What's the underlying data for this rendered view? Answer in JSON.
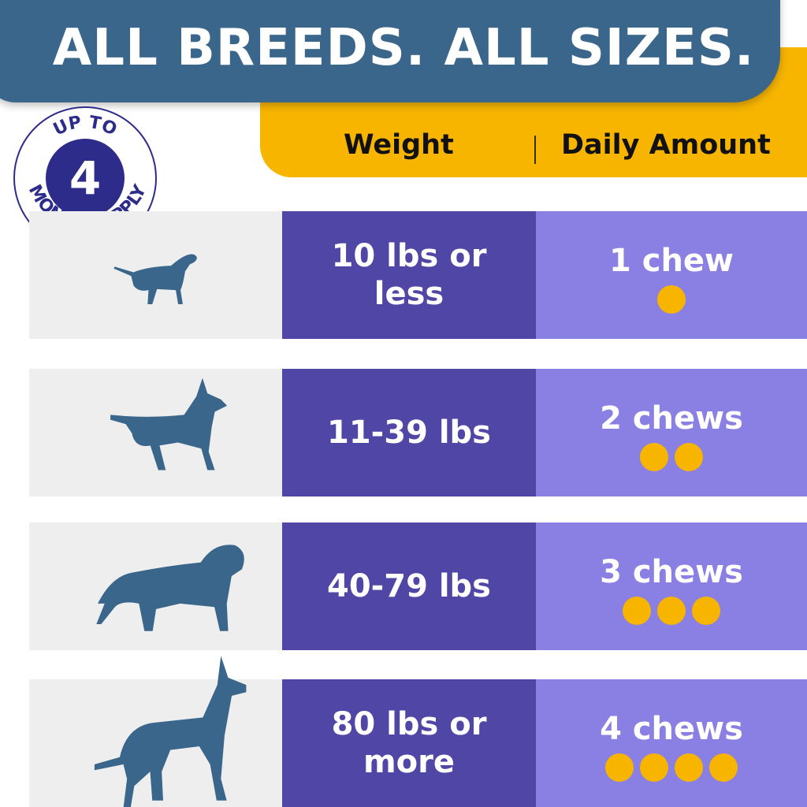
{
  "header": {
    "title": "ALL BREEDS. ALL SIZES."
  },
  "columns": {
    "weight": "Weight",
    "daily": "Daily Amount"
  },
  "badge": {
    "top": "UP TO",
    "number": "4",
    "bottom": "MONTH SUPPLY"
  },
  "colors": {
    "banner": "#3a668b",
    "accent": "#f7b500",
    "weight_bg": "#5046a6",
    "daily_bg": "#8a7fe3",
    "dog": "#3a668b"
  },
  "rows": [
    {
      "weight": "10 lbs or less",
      "amount": "1 chew",
      "chews": 1,
      "dog_icon": "small-dog-icon"
    },
    {
      "weight": "11-39 lbs",
      "amount": "2 chews",
      "chews": 2,
      "dog_icon": "medium-dog-icon"
    },
    {
      "weight": "40-79 lbs",
      "amount": "3 chews",
      "chews": 3,
      "dog_icon": "large-dog-icon"
    },
    {
      "weight": "80 lbs or more",
      "amount": "4 chews",
      "chews": 4,
      "dog_icon": "giant-dog-icon"
    }
  ]
}
